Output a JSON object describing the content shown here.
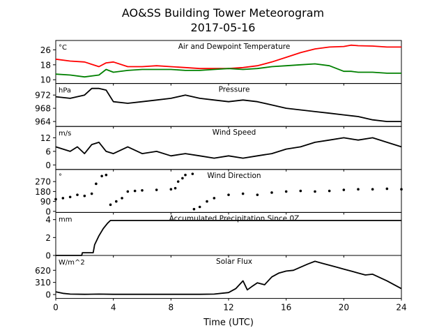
{
  "figure": {
    "title_line1": "AO&SS Building Tower Meteorogram",
    "title_line2": "2017-05-16",
    "xlabel": "Time (UTC)",
    "x_ticks": [
      0,
      4,
      8,
      12,
      16,
      20,
      24
    ],
    "xlim": [
      0,
      24
    ]
  },
  "colors": {
    "temperature": "#ff0000",
    "dewpoint": "#008000",
    "black": "#000000"
  },
  "chart_data": [
    {
      "type": "line",
      "title": "Air and Dewpoint Temperature",
      "unit": "°C",
      "ylim": [
        8,
        31
      ],
      "y_ticks": [
        10,
        18,
        26
      ],
      "x": [
        0,
        1,
        2,
        3,
        3.5,
        4,
        5,
        6,
        7,
        8,
        9,
        10,
        11,
        12,
        13,
        14,
        15,
        16,
        17,
        18,
        19,
        20,
        20.5,
        21,
        22,
        23,
        24
      ],
      "series": [
        {
          "key": "temperature",
          "values": [
            21,
            20,
            19.5,
            17,
            19,
            19.5,
            17,
            17,
            17.5,
            17,
            16.5,
            16,
            16,
            16,
            16.5,
            17.5,
            19.5,
            22,
            24.5,
            26.5,
            27.5,
            27.8,
            28.5,
            28.2,
            28,
            27.5,
            27.5
          ]
        },
        {
          "key": "dewpoint",
          "values": [
            13,
            12.5,
            11.5,
            12.5,
            15.5,
            14,
            15,
            15.5,
            15.5,
            15.5,
            15,
            15,
            15.5,
            16,
            15.5,
            16,
            17,
            17.5,
            18,
            18.5,
            17.5,
            14.5,
            14.5,
            14,
            14,
            13.5,
            13.5
          ]
        }
      ]
    },
    {
      "type": "line",
      "title": "Pressure",
      "unit": "hPa",
      "ylim": [
        962.5,
        975.5
      ],
      "y_ticks": [
        964,
        968,
        972
      ],
      "x": [
        0,
        1,
        2,
        2.5,
        3,
        3.5,
        4,
        5,
        6,
        7,
        8,
        9,
        10,
        11,
        12,
        13,
        14,
        15,
        16,
        17,
        18,
        19,
        20,
        21,
        22,
        23,
        24
      ],
      "series": [
        {
          "key": "pressure",
          "values": [
            971.5,
            971,
            972,
            974,
            974,
            973.5,
            970,
            969.5,
            970,
            970.5,
            971,
            972,
            971,
            970.5,
            970,
            970.5,
            970,
            969,
            968,
            967.5,
            967,
            966.5,
            966,
            965.5,
            964.5,
            964,
            964
          ]
        }
      ]
    },
    {
      "type": "line",
      "title": "Wind Speed",
      "unit": "m/s",
      "ylim": [
        -2,
        17
      ],
      "y_ticks": [
        0,
        6,
        12
      ],
      "x": [
        0,
        1,
        1.5,
        2,
        2.5,
        3,
        3.5,
        4,
        5,
        6,
        7,
        8,
        9,
        10,
        11,
        12,
        13,
        14,
        15,
        16,
        17,
        18,
        19,
        20,
        21,
        22,
        23,
        24
      ],
      "series": [
        {
          "key": "wind_speed",
          "values": [
            8,
            6,
            8,
            5,
            9,
            10,
            6,
            5,
            8,
            5,
            6,
            4,
            5,
            4,
            3,
            4,
            3,
            4,
            5,
            7,
            8,
            10,
            11,
            12,
            11,
            12,
            10,
            8
          ]
        }
      ]
    },
    {
      "type": "scatter",
      "title": "Wind Direction",
      "unit": "°",
      "ylim": [
        -10,
        380
      ],
      "y_ticks": [
        0,
        90,
        180,
        270
      ],
      "x": [
        0,
        0.5,
        1,
        1.5,
        2,
        2.5,
        2.8,
        3.2,
        3.5,
        3.8,
        4.2,
        4.6,
        5,
        5.5,
        6,
        7,
        8,
        8.3,
        8.5,
        8.8,
        9,
        9.5,
        9.6,
        10,
        10.5,
        11,
        12,
        13,
        14,
        15,
        16,
        17,
        18,
        19,
        20,
        21,
        22,
        23,
        24
      ],
      "series": [
        {
          "key": "wind_direction",
          "values": [
            110,
            120,
            130,
            150,
            140,
            160,
            250,
            320,
            330,
            60,
            90,
            120,
            180,
            185,
            190,
            195,
            200,
            210,
            270,
            300,
            330,
            340,
            20,
            40,
            90,
            120,
            150,
            160,
            150,
            170,
            180,
            185,
            180,
            185,
            195,
            200,
            200,
            205,
            200
          ]
        }
      ]
    },
    {
      "type": "line",
      "title": "Accumulated Precipitation Since 0Z",
      "unit": "mm",
      "ylim": [
        0,
        4.8
      ],
      "y_ticks": [
        0,
        2,
        4
      ],
      "x": [
        0,
        1.8,
        1.85,
        2.6,
        2.7,
        3,
        3.3,
        3.6,
        3.8,
        4,
        24
      ],
      "series": [
        {
          "key": "precipitation",
          "values": [
            0,
            0,
            0.3,
            0.3,
            1.2,
            2.2,
            3,
            3.6,
            3.9,
            3.9,
            3.9
          ]
        }
      ]
    },
    {
      "type": "line",
      "title": "Solar Flux",
      "unit": "W/m^2",
      "ylim": [
        -100,
        1000
      ],
      "y_ticks": [
        0,
        310,
        620
      ],
      "x": [
        0,
        0.5,
        1,
        2,
        3,
        4,
        6,
        8,
        10,
        11,
        12,
        12.5,
        13,
        13.3,
        13.6,
        14,
        14.5,
        15,
        15.5,
        16,
        16.5,
        17,
        17.5,
        18,
        18.5,
        19,
        19.5,
        20,
        20.5,
        21,
        21.5,
        22,
        23,
        24
      ],
      "series": [
        {
          "key": "solar",
          "values": [
            70,
            30,
            10,
            5,
            10,
            5,
            5,
            5,
            5,
            10,
            50,
            150,
            350,
            120,
            200,
            300,
            250,
            450,
            550,
            600,
            620,
            700,
            780,
            850,
            800,
            750,
            700,
            650,
            600,
            550,
            500,
            520,
            350,
            150
          ]
        }
      ]
    }
  ]
}
